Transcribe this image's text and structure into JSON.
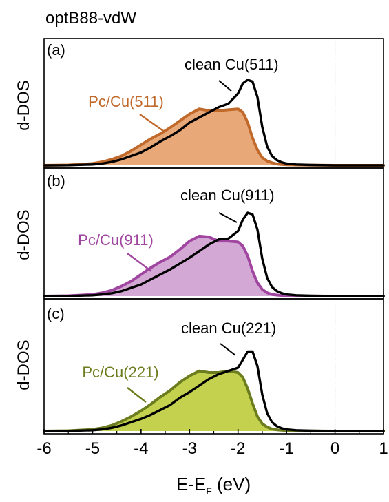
{
  "title": "optB88-vdW",
  "xlabel_main": "E-E",
  "xlabel_sub": "F",
  "xlabel_unit": " (eV)",
  "ylabel": "d-DOS",
  "colors": {
    "axis": "#000000",
    "clean_line": "#000000",
    "fermi_line": "#555555"
  },
  "chart_data": [
    {
      "type": "area",
      "panel_label": "(a)",
      "xlim": [
        -6,
        1
      ],
      "x_ticks": [],
      "fermi_level": 0,
      "x": [
        -6,
        -5.5,
        -5,
        -4.8,
        -4.6,
        -4.4,
        -4.2,
        -4.0,
        -3.8,
        -3.6,
        -3.4,
        -3.2,
        -3.0,
        -2.8,
        -2.6,
        -2.4,
        -2.2,
        -2.0,
        -1.9,
        -1.8,
        -1.7,
        -1.6,
        -1.5,
        -1.4,
        -1.3,
        -1.2,
        -1.1,
        -1.0,
        -0.8,
        -0.5,
        0,
        0.5,
        1
      ],
      "series": [
        {
          "name": "Pc/Cu(511)",
          "color": "#c0692a",
          "fill": "#e8a878",
          "values": [
            0,
            0.004,
            0.02,
            0.04,
            0.07,
            0.11,
            0.17,
            0.24,
            0.31,
            0.37,
            0.44,
            0.52,
            0.6,
            0.66,
            0.64,
            0.64,
            0.65,
            0.66,
            0.62,
            0.5,
            0.32,
            0.18,
            0.09,
            0.05,
            0.03,
            0.015,
            0.01,
            0.006,
            0.004,
            0.002,
            0,
            0,
            0
          ]
        },
        {
          "name": "clean Cu(511)",
          "color": "#000000",
          "fill": "none",
          "values": [
            0,
            0.002,
            0.01,
            0.02,
            0.04,
            0.07,
            0.11,
            0.15,
            0.21,
            0.28,
            0.34,
            0.41,
            0.5,
            0.56,
            0.62,
            0.68,
            0.72,
            0.84,
            0.96,
            1.0,
            0.98,
            0.8,
            0.45,
            0.22,
            0.11,
            0.06,
            0.035,
            0.02,
            0.01,
            0.004,
            0,
            0,
            0
          ]
        }
      ],
      "annotations": [
        {
          "text": "clean Cu(511)",
          "color": "#000000"
        },
        {
          "text": "Pc/Cu(511)",
          "color": "#c0692a"
        }
      ]
    },
    {
      "type": "area",
      "panel_label": "(b)",
      "xlim": [
        -6,
        1
      ],
      "x_ticks": [],
      "fermi_level": null,
      "x": [
        -6,
        -5.5,
        -5,
        -4.8,
        -4.6,
        -4.4,
        -4.2,
        -4.0,
        -3.8,
        -3.6,
        -3.4,
        -3.2,
        -3.0,
        -2.8,
        -2.6,
        -2.4,
        -2.2,
        -2.0,
        -1.9,
        -1.8,
        -1.7,
        -1.6,
        -1.5,
        -1.4,
        -1.3,
        -1.2,
        -1.1,
        -1.0,
        -0.8,
        -0.5,
        0,
        0.5,
        1
      ],
      "series": [
        {
          "name": "Pc/Cu(911)",
          "color": "#a046a0",
          "fill": "#d4a8d4",
          "values": [
            0,
            0.004,
            0.02,
            0.04,
            0.07,
            0.12,
            0.18,
            0.26,
            0.34,
            0.41,
            0.47,
            0.56,
            0.66,
            0.72,
            0.71,
            0.66,
            0.66,
            0.65,
            0.6,
            0.48,
            0.3,
            0.16,
            0.08,
            0.04,
            0.02,
            0.012,
            0.008,
            0.005,
            0.003,
            0.001,
            0,
            0,
            0
          ]
        },
        {
          "name": "clean Cu(911)",
          "color": "#000000",
          "fill": "none",
          "values": [
            0,
            0.002,
            0.01,
            0.02,
            0.035,
            0.06,
            0.1,
            0.14,
            0.2,
            0.26,
            0.32,
            0.39,
            0.46,
            0.54,
            0.62,
            0.68,
            0.69,
            0.78,
            0.92,
            1.0,
            0.98,
            0.8,
            0.45,
            0.22,
            0.11,
            0.06,
            0.035,
            0.02,
            0.01,
            0.004,
            0,
            0,
            0
          ]
        }
      ],
      "annotations": [
        {
          "text": "clean Cu(911)",
          "color": "#000000"
        },
        {
          "text": "Pc/Cu(911)",
          "color": "#a046a0"
        }
      ]
    },
    {
      "type": "area",
      "panel_label": "(c)",
      "xlim": [
        -6,
        1
      ],
      "x_ticks": [
        -6,
        -5,
        -4,
        -3,
        -2,
        -1,
        0,
        1
      ],
      "fermi_level": 0,
      "x": [
        -6,
        -5.5,
        -5,
        -4.8,
        -4.6,
        -4.4,
        -4.2,
        -4.0,
        -3.8,
        -3.6,
        -3.4,
        -3.2,
        -3.0,
        -2.8,
        -2.6,
        -2.4,
        -2.2,
        -2.0,
        -1.9,
        -1.8,
        -1.7,
        -1.6,
        -1.5,
        -1.4,
        -1.3,
        -1.2,
        -1.1,
        -1.0,
        -0.8,
        -0.5,
        0,
        0.5,
        1
      ],
      "series": [
        {
          "name": "Pc/Cu(221)",
          "color": "#6b7d1e",
          "fill": "#c3d14e",
          "values": [
            0,
            0.004,
            0.02,
            0.04,
            0.07,
            0.12,
            0.18,
            0.25,
            0.33,
            0.42,
            0.5,
            0.6,
            0.68,
            0.74,
            0.72,
            0.72,
            0.74,
            0.72,
            0.66,
            0.52,
            0.34,
            0.18,
            0.09,
            0.05,
            0.025,
            0.015,
            0.01,
            0.006,
            0.004,
            0.002,
            0,
            0,
            0
          ]
        },
        {
          "name": "clean Cu(221)",
          "color": "#000000",
          "fill": "none",
          "values": [
            0,
            0.002,
            0.01,
            0.02,
            0.04,
            0.07,
            0.11,
            0.15,
            0.2,
            0.26,
            0.32,
            0.41,
            0.48,
            0.56,
            0.64,
            0.7,
            0.74,
            0.78,
            0.88,
            0.98,
            0.98,
            0.8,
            0.45,
            0.22,
            0.11,
            0.06,
            0.035,
            0.02,
            0.01,
            0.004,
            0,
            0,
            0
          ]
        }
      ],
      "annotations": [
        {
          "text": "clean Cu(221)",
          "color": "#000000"
        },
        {
          "text": "Pc/Cu(221)",
          "color": "#6b7d1e"
        }
      ]
    }
  ]
}
